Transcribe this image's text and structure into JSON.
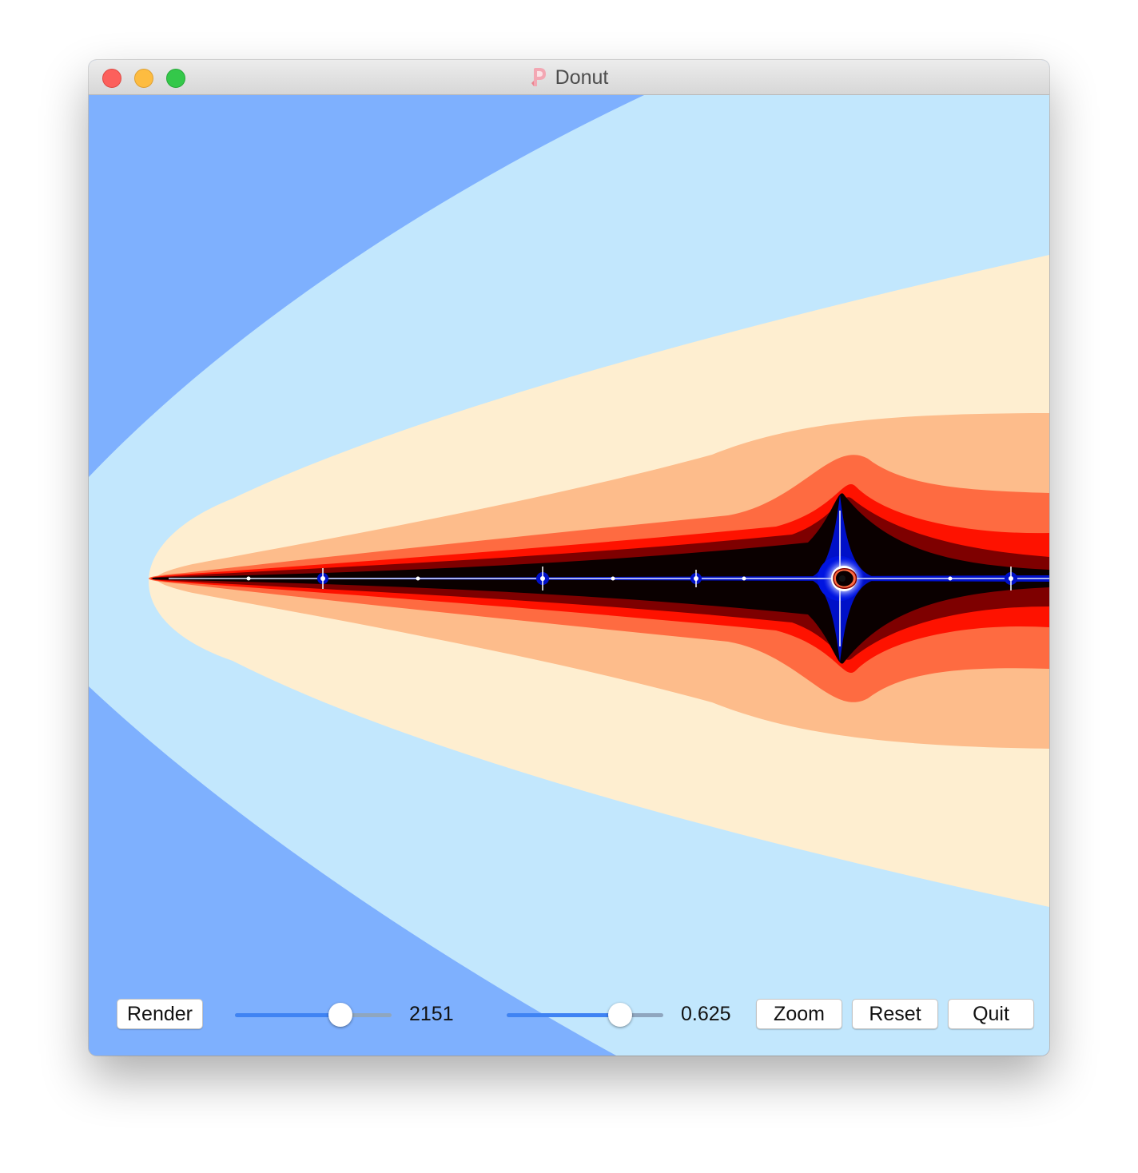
{
  "window": {
    "title": "Donut"
  },
  "icons": {
    "app": "app-icon-pink-p",
    "close": "close-traffic-light",
    "minimize": "minimize-traffic-light",
    "maximize": "maximize-traffic-light"
  },
  "colors": {
    "outer_blue": "#7eb0fe",
    "light_blue": "#c2e7fd",
    "cream": "#feeed0",
    "peach": "#fdbc8b",
    "orange": "#fe6b41",
    "red": "#fe1200",
    "dark_red": "#7e0000",
    "black": "#0a0000",
    "deep_blue": "#0010c8",
    "white": "#ffffff"
  },
  "controls": {
    "render_label": "Render",
    "zoom_label": "Zoom",
    "reset_label": "Reset",
    "quit_label": "Quit",
    "iterations_slider": {
      "value_label": "2151",
      "fraction": 0.675
    },
    "scale_slider": {
      "value_label": "0.625",
      "fraction": 0.725
    }
  }
}
